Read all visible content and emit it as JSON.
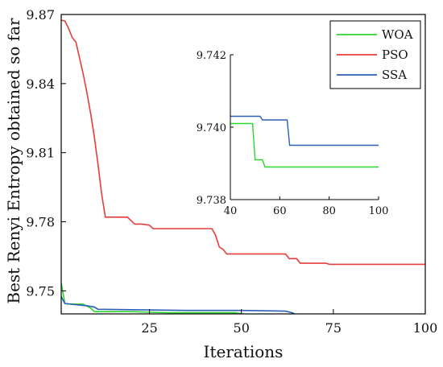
{
  "chart_data": {
    "type": "line",
    "title": "",
    "xlabel": "Iterations",
    "ylabel": "Best Renyi Entropy obtained so far",
    "xlim": [
      1,
      100
    ],
    "ylim": [
      9.74,
      9.87
    ],
    "x_ticks": [
      25,
      50,
      75,
      100
    ],
    "x_tick_labels": [
      "25",
      "50",
      "75",
      "100"
    ],
    "y_ticks": [
      9.75,
      9.78,
      9.81,
      9.84,
      9.87
    ],
    "y_tick_labels": [
      "9.75",
      "9.78",
      "9.81",
      "9.84",
      "9.87"
    ],
    "grid": false,
    "legend_position": "top-right",
    "series": [
      {
        "name": "WOA",
        "color": "#2fd52f",
        "points": [
          [
            1,
            9.7535
          ],
          [
            2,
            9.7445
          ],
          [
            3,
            9.7443
          ],
          [
            7,
            9.7442
          ],
          [
            9,
            9.7425
          ],
          [
            10,
            9.741
          ],
          [
            20,
            9.741
          ],
          [
            30,
            9.7405
          ],
          [
            48,
            9.7405
          ],
          [
            50,
            9.7401
          ],
          [
            52,
            9.7391
          ],
          [
            54,
            9.7389
          ],
          [
            100,
            9.7389
          ]
        ]
      },
      {
        "name": "PSO",
        "color": "#e83c3c",
        "points": [
          [
            1,
            9.8675
          ],
          [
            2,
            9.8672
          ],
          [
            3,
            9.864
          ],
          [
            4,
            9.86
          ],
          [
            5,
            9.858
          ],
          [
            6,
            9.851
          ],
          [
            7,
            9.844
          ],
          [
            8,
            9.836
          ],
          [
            9,
            9.827
          ],
          [
            10,
            9.817
          ],
          [
            11,
            9.805
          ],
          [
            12,
            9.792
          ],
          [
            13,
            9.782
          ],
          [
            19,
            9.782
          ],
          [
            20,
            9.7805
          ],
          [
            21,
            9.779
          ],
          [
            23,
            9.779
          ],
          [
            25,
            9.7785
          ],
          [
            26,
            9.777
          ],
          [
            42,
            9.777
          ],
          [
            43,
            9.774
          ],
          [
            44,
            9.769
          ],
          [
            45,
            9.768
          ],
          [
            46,
            9.766
          ],
          [
            62,
            9.766
          ],
          [
            63,
            9.764
          ],
          [
            65,
            9.764
          ],
          [
            66,
            9.762
          ],
          [
            73,
            9.762
          ],
          [
            74,
            9.7615
          ],
          [
            100,
            9.7615
          ]
        ]
      },
      {
        "name": "SSA",
        "color": "#2b5fb4",
        "points": [
          [
            1,
            9.7475
          ],
          [
            2,
            9.7445
          ],
          [
            8,
            9.7435
          ],
          [
            10,
            9.743
          ],
          [
            11,
            9.742
          ],
          [
            20,
            9.7418
          ],
          [
            35,
            9.7415
          ],
          [
            50,
            9.7415
          ],
          [
            62,
            9.7412
          ],
          [
            64,
            9.7404
          ],
          [
            65,
            9.7395
          ],
          [
            100,
            9.7395
          ]
        ]
      }
    ],
    "inset": {
      "xlim": [
        40,
        100
      ],
      "ylim": [
        9.738,
        9.742
      ],
      "x_ticks": [
        40,
        60,
        80,
        100
      ],
      "x_tick_labels": [
        "40",
        "60",
        "80",
        "100"
      ],
      "y_ticks": [
        9.738,
        9.74,
        9.742
      ],
      "y_tick_labels": [
        "9.738",
        "9.740",
        "9.742"
      ],
      "series": [
        {
          "name": "WOA",
          "color": "#2fd52f",
          "points": [
            [
              40,
              9.7401
            ],
            [
              49,
              9.7401
            ],
            [
              50,
              9.7391
            ],
            [
              53,
              9.7391
            ],
            [
              54,
              9.7389
            ],
            [
              100,
              9.7389
            ]
          ]
        },
        {
          "name": "SSA",
          "color": "#2b5fb4",
          "points": [
            [
              40,
              9.7403
            ],
            [
              52,
              9.7403
            ],
            [
              53,
              9.7402
            ],
            [
              63,
              9.7402
            ],
            [
              64,
              9.7395
            ],
            [
              100,
              9.7395
            ]
          ]
        }
      ]
    }
  }
}
